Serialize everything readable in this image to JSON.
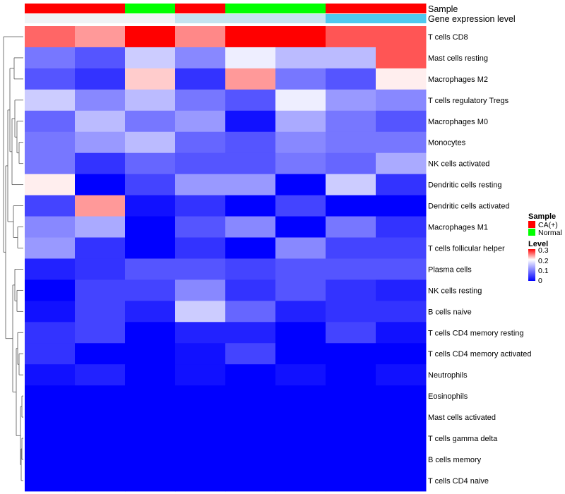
{
  "chart_data": {
    "type": "heatmap",
    "title": "",
    "annotation_tracks": [
      {
        "name": "Sample",
        "values": [
          "CA(+)",
          "CA(+)",
          "Normal",
          "CA(+)",
          "Normal",
          "Normal",
          "CA(+)",
          "CA(+)"
        ]
      },
      {
        "name": "Gene expression level",
        "values": [
          "low",
          "low",
          "low",
          "mid",
          "mid",
          "mid",
          "high",
          "high"
        ]
      }
    ],
    "rows": [
      "T cells CD8",
      "Mast cells resting",
      "Macrophages M2",
      "T cells regulatory  Tregs",
      "Macrophages M0",
      "Monocytes",
      "NK cells activated",
      "Dendritic cells resting",
      "Dendritic cells activated",
      "Macrophages M1",
      "T cells follicular helper",
      "Plasma cells",
      "NK cells resting",
      "B cells naive",
      "T cells CD4 memory resting",
      "T cells CD4 memory activated",
      "Neutrophils",
      "Eosinophils",
      "Mast cells activated",
      "T cells gamma delta",
      "B cells memory",
      "T cells CD4 naive"
    ],
    "values": [
      [
        0.24,
        0.21,
        0.3,
        0.22,
        0.3,
        0.3,
        0.25,
        0.25
      ],
      [
        0.07,
        0.05,
        0.12,
        0.08,
        0.14,
        0.11,
        0.11,
        0.25
      ],
      [
        0.05,
        0.03,
        0.18,
        0.03,
        0.21,
        0.07,
        0.05,
        0.16
      ],
      [
        0.12,
        0.08,
        0.11,
        0.07,
        0.05,
        0.14,
        0.09,
        0.08
      ],
      [
        0.06,
        0.11,
        0.07,
        0.09,
        0.01,
        0.1,
        0.07,
        0.05
      ],
      [
        0.07,
        0.09,
        0.11,
        0.06,
        0.05,
        0.08,
        0.07,
        0.07
      ],
      [
        0.07,
        0.03,
        0.06,
        0.05,
        0.05,
        0.07,
        0.06,
        0.1
      ],
      [
        0.16,
        0.0,
        0.04,
        0.09,
        0.09,
        0.0,
        0.12,
        0.03
      ],
      [
        0.04,
        0.21,
        0.01,
        0.03,
        0.0,
        0.04,
        0.0,
        0.0
      ],
      [
        0.08,
        0.1,
        0.0,
        0.05,
        0.08,
        0.0,
        0.07,
        0.03
      ],
      [
        0.09,
        0.03,
        0.0,
        0.03,
        0.0,
        0.08,
        0.04,
        0.04
      ],
      [
        0.02,
        0.03,
        0.05,
        0.05,
        0.04,
        0.05,
        0.05,
        0.05
      ],
      [
        0.0,
        0.04,
        0.04,
        0.08,
        0.03,
        0.05,
        0.03,
        0.02
      ],
      [
        0.01,
        0.04,
        0.02,
        0.12,
        0.06,
        0.02,
        0.03,
        0.03
      ],
      [
        0.03,
        0.04,
        0.0,
        0.02,
        0.02,
        0.0,
        0.04,
        0.01
      ],
      [
        0.03,
        0.0,
        0.0,
        0.01,
        0.04,
        0.0,
        0.0,
        0.0
      ],
      [
        0.01,
        0.02,
        0.0,
        0.01,
        0.0,
        0.01,
        0.0,
        0.01
      ],
      [
        0.0,
        0.0,
        0.0,
        0.0,
        0.0,
        0.0,
        0.0,
        0.0
      ],
      [
        0.0,
        0.0,
        0.0,
        0.0,
        0.0,
        0.0,
        0.0,
        0.0
      ],
      [
        0.0,
        0.0,
        0.0,
        0.0,
        0.0,
        0.0,
        0.0,
        0.0
      ],
      [
        0.0,
        0.0,
        0.0,
        0.0,
        0.0,
        0.0,
        0.0,
        0.0
      ],
      [
        0.0,
        0.0,
        0.0,
        0.0,
        0.0,
        0.0,
        0.0,
        0.0
      ]
    ],
    "color_scale": {
      "min": 0,
      "max": 0.3,
      "colors": [
        "#0000ff",
        "#ffffff",
        "#ff0000"
      ]
    },
    "legend": {
      "sample_title": "Sample",
      "sample_entries": [
        {
          "label": "CA(+)",
          "color": "#ff0000"
        },
        {
          "label": "Normal",
          "color": "#00ff00"
        }
      ],
      "level_title": "Level",
      "level_ticks": [
        "0.3",
        "0.2",
        "0.1",
        "0"
      ],
      "placement": "right"
    },
    "gene_level_colors": {
      "low": "#f0f3f6",
      "mid": "#c5e4f0",
      "high": "#4fc8ee"
    },
    "dendrogram": "rows clustered, shown on left"
  }
}
